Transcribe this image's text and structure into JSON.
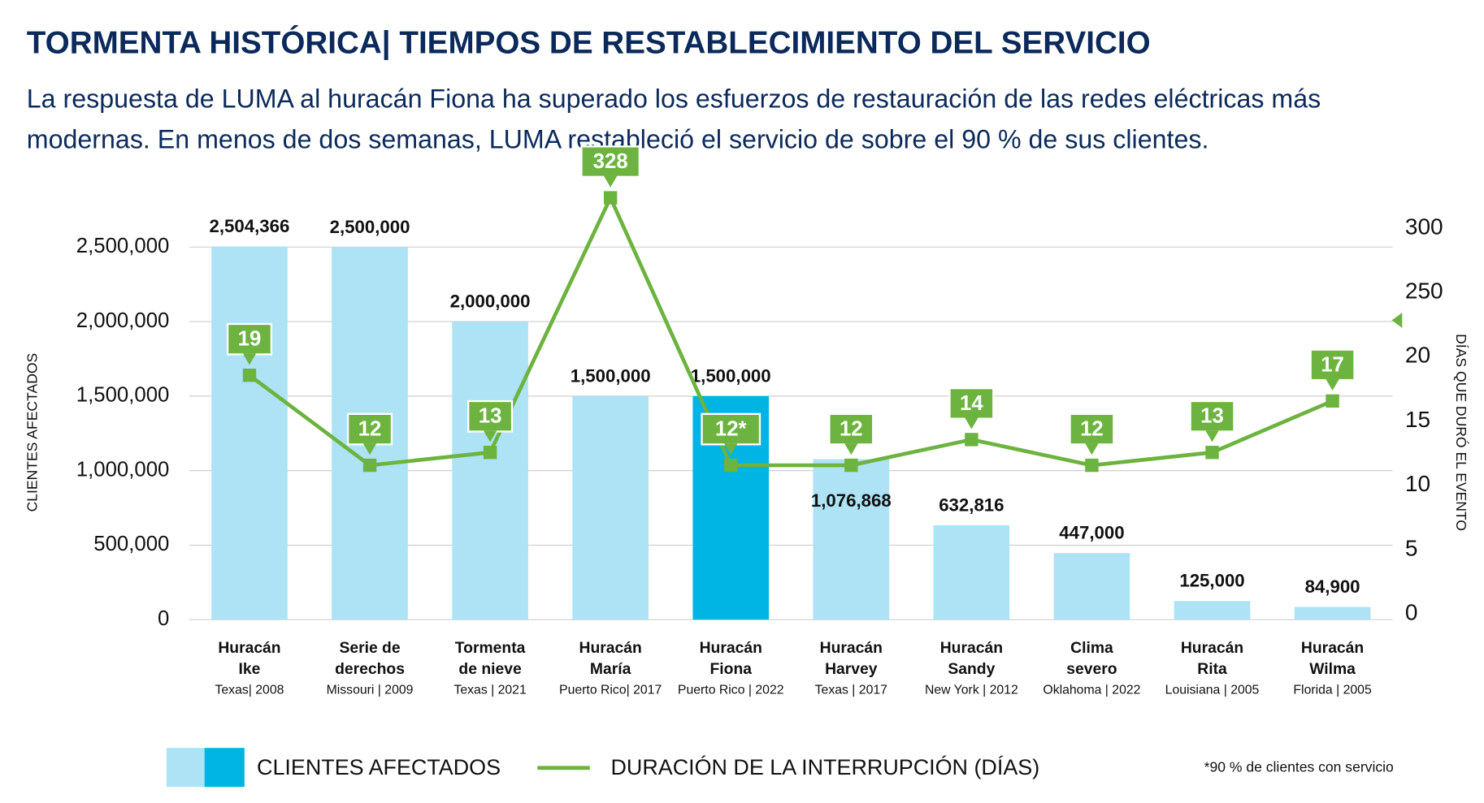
{
  "chart_data": {
    "type": "bar",
    "title": "TORMENTA HISTÓRICA| TIEMPOS DE RESTABLECIMIENTO DEL SERVICIO",
    "subtitle": "La respuesta de LUMA al huracán Fiona ha superado los esfuerzos de restauración de las redes eléctricas más modernas. En menos de dos semanas, LUMA restableció el servicio de sobre el 90 % de sus clientes.",
    "categories": [
      "Huracán\nIke",
      "Serie de\nderechos",
      "Tormenta\nde nieve",
      "Huracán\nMaría",
      "Huracán\nFiona",
      "Huracán\nHarvey",
      "Huracán\nSandy",
      "Clima\nsevero",
      "Huracán\nRita",
      "Huracán\nWilma"
    ],
    "locations": [
      "Texas| 2008",
      "Missouri | 2009",
      "Texas | 2021",
      "Puerto Rico| 2017",
      "Puerto Rico | 2022",
      "Texas | 2017",
      "New York | 2012",
      "Oklahoma | 2022",
      "Louisiana | 2005",
      "Florida | 2005"
    ],
    "series": [
      {
        "name": "CLIENTES AFECTADOS",
        "type": "bar",
        "colors": [
          "#ade3f5",
          "#ade3f5",
          "#ade3f5",
          "#ade3f5",
          "#00b5e3",
          "#ade3f5",
          "#ade3f5",
          "#ade3f5",
          "#ade3f5",
          "#ade3f5"
        ],
        "values": [
          2504366,
          2500000,
          2000000,
          1500000,
          1500000,
          1076868,
          632816,
          447000,
          125000,
          84900
        ],
        "value_labels": [
          "2,504,366",
          "2,500,000",
          "2,000,000",
          "1,500,000",
          "1,500,000",
          "1,076,868",
          "632,816",
          "447,000",
          "125,000",
          "84,900"
        ]
      },
      {
        "name": "DURACIÓN DE LA INTERRUPCIÓN (DÍAS)",
        "type": "line",
        "axis": "y2",
        "color": "#6cb33f",
        "values": [
          19,
          12,
          13,
          328,
          12,
          12,
          14,
          12,
          13,
          17
        ],
        "value_labels": [
          "19",
          "12",
          "13",
          "328",
          "12*",
          "12",
          "14",
          "12",
          "13",
          "17"
        ]
      }
    ],
    "ylabel": "CLIENTES AFECTADOS",
    "y2label": "DÍAS QUE DURÓ EL EVENTO",
    "ylim": [
      0,
      2500000
    ],
    "yticks": [
      0,
      {
        "value": 500000,
        "label": "500,000"
      },
      {
        "value": 1000000,
        "label": "1,000,000"
      },
      {
        "value": 1500000,
        "label": "1,500,000"
      },
      {
        "value": 2000000,
        "label": "2,000,000"
      },
      {
        "value": 2500000,
        "label": "2,500,000"
      }
    ],
    "y2lim": [
      0,
      300
    ],
    "y2ticks": [
      0,
      5,
      10,
      15,
      20,
      250,
      300
    ],
    "grid": true,
    "footnote": "*90 % de clientes con servicio"
  }
}
